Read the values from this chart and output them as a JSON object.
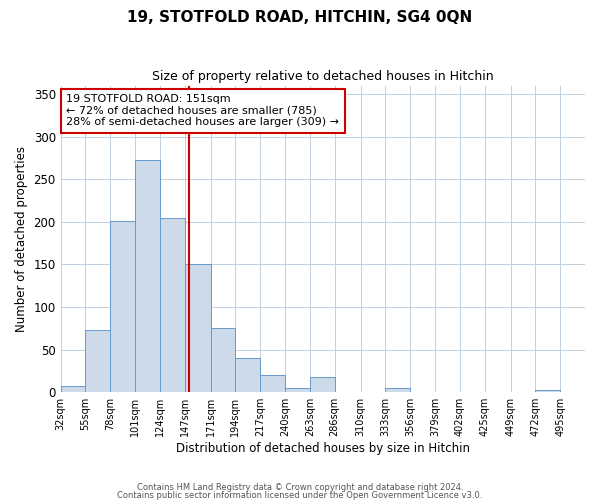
{
  "title": "19, STOTFOLD ROAD, HITCHIN, SG4 0QN",
  "subtitle": "Size of property relative to detached houses in Hitchin",
  "bar_labels": [
    "32sqm",
    "55sqm",
    "78sqm",
    "101sqm",
    "124sqm",
    "147sqm",
    "171sqm",
    "194sqm",
    "217sqm",
    "240sqm",
    "263sqm",
    "286sqm",
    "310sqm",
    "333sqm",
    "356sqm",
    "379sqm",
    "402sqm",
    "425sqm",
    "449sqm",
    "472sqm",
    "495sqm"
  ],
  "bar_heights": [
    7,
    73,
    201,
    273,
    205,
    150,
    75,
    40,
    20,
    5,
    18,
    0,
    0,
    5,
    0,
    0,
    0,
    0,
    0,
    3,
    0
  ],
  "bar_color": "#ccdaea",
  "bar_edge_color": "#6699cc",
  "xlabel": "Distribution of detached houses by size in Hitchin",
  "ylabel": "Number of detached properties",
  "ylim": [
    0,
    360
  ],
  "yticks": [
    0,
    50,
    100,
    150,
    200,
    250,
    300,
    350
  ],
  "property_line_x": 151,
  "property_line_color": "#cc0000",
  "annotation_title": "19 STOTFOLD ROAD: 151sqm",
  "annotation_line1": "← 72% of detached houses are smaller (785)",
  "annotation_line2": "28% of semi-detached houses are larger (309) →",
  "annotation_box_color": "#cc0000",
  "footer_line1": "Contains HM Land Registry data © Crown copyright and database right 2024.",
  "footer_line2": "Contains public sector information licensed under the Open Government Licence v3.0.",
  "bin_edges": [
    32,
    55,
    78,
    101,
    124,
    147,
    171,
    194,
    217,
    240,
    263,
    286,
    310,
    333,
    356,
    379,
    402,
    425,
    449,
    472,
    495,
    518
  ]
}
